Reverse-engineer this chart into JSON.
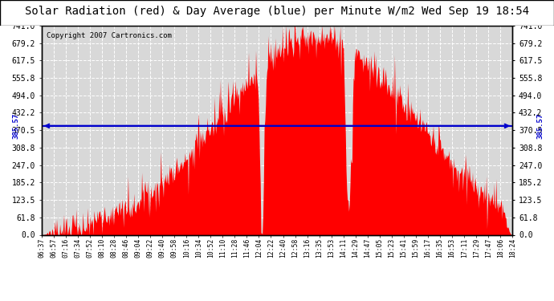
{
  "title": "Solar Radiation (red) & Day Average (blue) per Minute W/m2 Wed Sep 19 18:54",
  "copyright": "Copyright 2007 Cartronics.com",
  "y_max": 741.0,
  "y_min": 0.0,
  "y_ticks": [
    0.0,
    61.8,
    123.5,
    185.2,
    247.0,
    308.8,
    370.5,
    432.2,
    494.0,
    555.8,
    617.5,
    679.2,
    741.0
  ],
  "avg_value": 385.57,
  "x_tick_labels": [
    "06:37",
    "06:57",
    "07:16",
    "07:34",
    "07:52",
    "08:10",
    "08:28",
    "08:46",
    "09:04",
    "09:22",
    "09:40",
    "09:58",
    "10:16",
    "10:34",
    "10:52",
    "11:10",
    "11:28",
    "11:46",
    "12:04",
    "12:22",
    "12:40",
    "12:58",
    "13:16",
    "13:35",
    "13:53",
    "14:11",
    "14:29",
    "14:47",
    "15:05",
    "15:23",
    "15:41",
    "15:59",
    "16:17",
    "16:35",
    "16:53",
    "17:11",
    "17:29",
    "17:47",
    "18:06",
    "18:24"
  ],
  "bg_color": "#d8d8d8",
  "fill_color": "#ff0000",
  "line_color": "#0000cc",
  "title_bg": "#ffffff",
  "copyright_color": "#000000",
  "grid_color": "#ffffff",
  "border_color": "#000000",
  "title_fontsize": 10,
  "copyright_fontsize": 6.5,
  "tick_fontsize": 7,
  "xtick_fontsize": 5.8
}
